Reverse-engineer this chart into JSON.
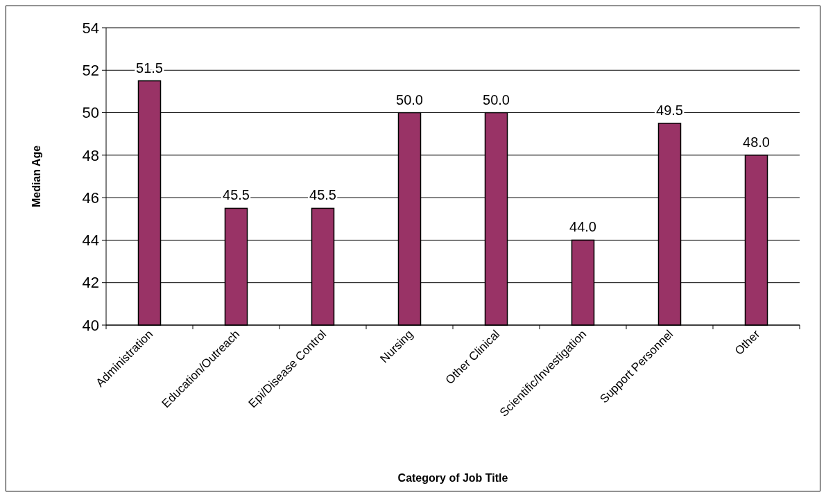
{
  "chart_data": {
    "type": "bar",
    "xlabel": "Category of Job Title",
    "ylabel": "Median Age",
    "categories": [
      "Administration",
      "Education/Outreach",
      "Epi/Disease Control",
      "Nursing",
      "Other Clinical",
      "Scientific/Investigation",
      "Support Personnel",
      "Other"
    ],
    "values": [
      51.5,
      45.5,
      45.5,
      50.0,
      50.0,
      44.0,
      49.5,
      48.0
    ],
    "value_labels": [
      "51.5",
      "45.5",
      "45.5",
      "50.0",
      "50.0",
      "44.0",
      "49.5",
      "48.0"
    ],
    "color": "#993366",
    "ylim": [
      40,
      54
    ],
    "yticks": [
      40,
      42,
      44,
      46,
      48,
      50,
      52,
      54
    ],
    "grid": "y"
  }
}
